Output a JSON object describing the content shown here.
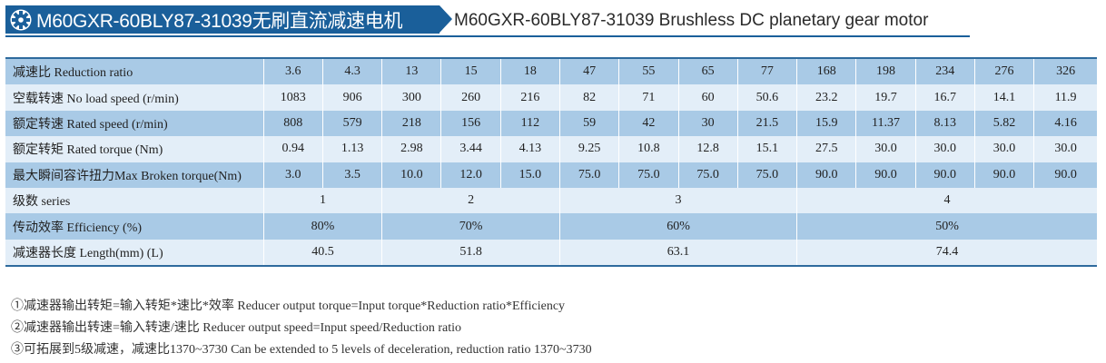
{
  "header": {
    "title": "M60GXR-60BLY87-31039无刷直流减速电机",
    "subtitle": "M60GXR-60BLY87-31039 Brushless DC planetary gear motor",
    "icon": "gear-icon"
  },
  "table": {
    "ratio": {
      "label": "减速比  Reduction ratio",
      "values": [
        "3.6",
        "4.3",
        "13",
        "15",
        "18",
        "47",
        "55",
        "65",
        "77",
        "168",
        "198",
        "234",
        "276",
        "326"
      ]
    },
    "no_load_speed": {
      "label": "空载转速 No load speed (r/min)",
      "values": [
        "1083",
        "906",
        "300",
        "260",
        "216",
        "82",
        "71",
        "60",
        "50.6",
        "23.2",
        "19.7",
        "16.7",
        "14.1",
        "11.9"
      ]
    },
    "rated_speed": {
      "label": "额定转速 Rated speed (r/min)",
      "values": [
        "808",
        "579",
        "218",
        "156",
        "112",
        "59",
        "42",
        "30",
        "21.5",
        "15.9",
        "11.37",
        "8.13",
        "5.82",
        "4.16"
      ]
    },
    "rated_torque": {
      "label": "额定转矩 Rated torque (Nm)",
      "values": [
        "0.94",
        "1.13",
        "2.98",
        "3.44",
        "4.13",
        "9.25",
        "10.8",
        "12.8",
        "15.1",
        "27.5",
        "30.0",
        "30.0",
        "30.0",
        "30.0"
      ]
    },
    "max_torque": {
      "label": "最大瞬间容许扭力Max Broken torque(Nm)",
      "values": [
        "3.0",
        "3.5",
        "10.0",
        "12.0",
        "15.0",
        "75.0",
        "75.0",
        "75.0",
        "75.0",
        "90.0",
        "90.0",
        "90.0",
        "90.0",
        "90.0"
      ]
    },
    "series": {
      "label": "级数 series",
      "values": [
        "1",
        "2",
        "3",
        "4"
      ]
    },
    "efficiency": {
      "label": "传动效率 Efficiency (%)",
      "values": [
        "80%",
        "70%",
        "60%",
        "50%"
      ]
    },
    "length": {
      "label": "减速器长度 Length(mm) (L)",
      "values": [
        "40.5",
        "51.8",
        "63.1",
        "74.4"
      ]
    }
  },
  "notes": [
    "①减速器输出转矩=输入转矩*速比*效率  Reducer output torque=Input torque*Reduction ratio*Efficiency",
    "②减速器输出转速=输入转速/速比  Reducer output speed=Input speed/Reduction ratio",
    "③可拓展到5级减速，减速比1370~3730  Can be extended to 5 levels of deceleration, reduction ratio 1370~3730"
  ],
  "colors": {
    "brand": "#1a5f9a",
    "row_dark": "#a9cae6",
    "row_light": "#e3eef8"
  }
}
